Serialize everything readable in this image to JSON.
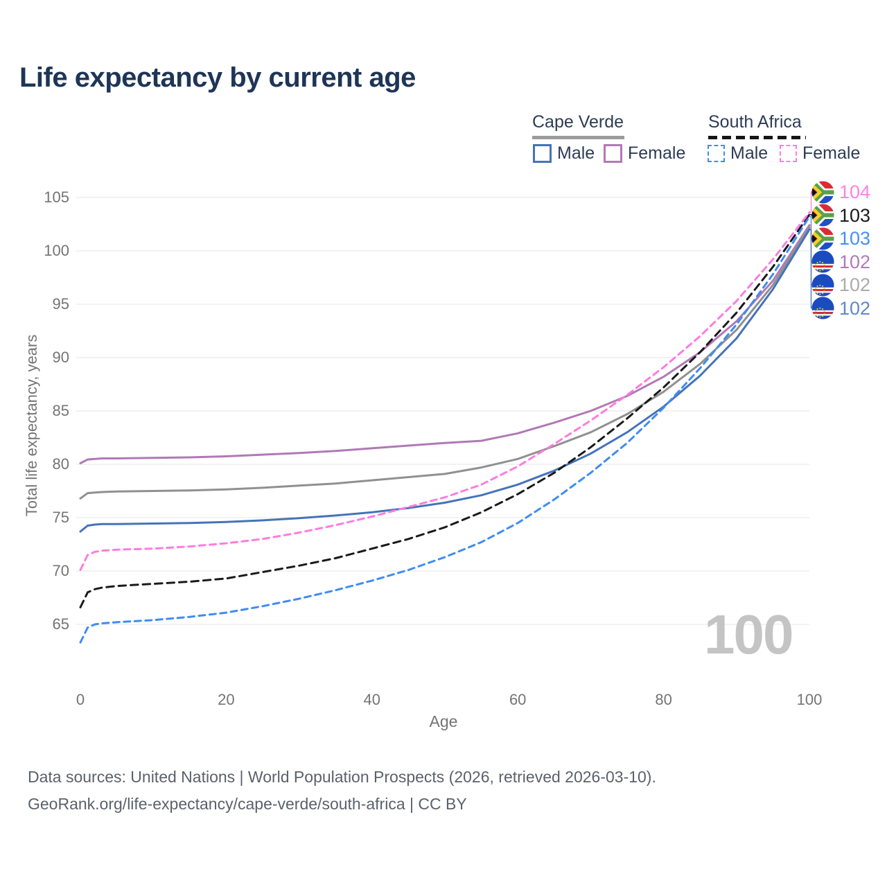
{
  "title": "Life expectancy by current age",
  "watermark_age": "100",
  "legend": {
    "groups": [
      {
        "name": "Cape Verde",
        "line_style": "solid",
        "line_color": "#9b9b9b",
        "items": [
          {
            "label": "Male",
            "color": "#4573ba",
            "style": "solid"
          },
          {
            "label": "Female",
            "color": "#b079b6",
            "style": "solid"
          }
        ]
      },
      {
        "name": "South Africa",
        "line_style": "dashed",
        "line_color": "#161616",
        "items": [
          {
            "label": "Male",
            "color": "#3f8cf3",
            "style": "dashed"
          },
          {
            "label": "Female",
            "color": "#ff7bdf",
            "style": "dashed"
          }
        ]
      }
    ]
  },
  "chart_data": {
    "type": "line",
    "title": "Life expectancy by current age",
    "xlabel": "Age",
    "ylabel": "Total life expectancy, years",
    "xlim": [
      0,
      100
    ],
    "ylim": [
      63,
      106
    ],
    "xticks": [
      0,
      20,
      40,
      60,
      80,
      100
    ],
    "yticks": [
      65,
      70,
      75,
      80,
      85,
      90,
      95,
      100,
      105
    ],
    "grid": "horizontal",
    "legend_position": "top-right",
    "x": [
      0,
      1,
      2,
      3,
      5,
      10,
      15,
      20,
      25,
      30,
      35,
      40,
      45,
      50,
      55,
      60,
      65,
      70,
      75,
      80,
      85,
      90,
      95,
      100
    ],
    "series": [
      {
        "name": "Cape Verde Female",
        "country": "cape-verde",
        "sex": "female",
        "color": "#b079b6",
        "dashed": false,
        "end_label": "102",
        "end_label_color": "#b27ab8",
        "values": [
          80.1,
          80.45,
          80.5,
          80.55,
          80.55,
          80.6,
          80.65,
          80.75,
          80.9,
          81.05,
          81.25,
          81.5,
          81.75,
          82.0,
          82.2,
          82.9,
          83.9,
          85.0,
          86.4,
          88.2,
          90.5,
          93.4,
          97.2,
          102.4
        ]
      },
      {
        "name": "Cape Verde Both sexes",
        "country": "cape-verde",
        "sex": "both",
        "color": "#909090",
        "dashed": false,
        "end_label": "102",
        "end_label_color": "#ababab",
        "values": [
          76.8,
          77.3,
          77.35,
          77.4,
          77.45,
          77.5,
          77.55,
          77.65,
          77.8,
          78.0,
          78.2,
          78.5,
          78.8,
          79.1,
          79.7,
          80.5,
          81.7,
          83.0,
          84.7,
          86.8,
          89.4,
          92.6,
          96.8,
          102.2
        ]
      },
      {
        "name": "Cape Verde Male",
        "country": "cape-verde",
        "sex": "male",
        "color": "#4573ba",
        "dashed": false,
        "end_label": "102",
        "end_label_color": "#6287c9",
        "values": [
          73.7,
          74.25,
          74.35,
          74.4,
          74.4,
          74.45,
          74.5,
          74.6,
          74.75,
          74.95,
          75.2,
          75.5,
          75.9,
          76.4,
          77.1,
          78.1,
          79.4,
          81.0,
          83.0,
          85.4,
          88.3,
          91.8,
          96.4,
          102.0
        ]
      },
      {
        "name": "South Africa Both sexes",
        "country": "south-africa",
        "sex": "both",
        "color": "#1a1a1a",
        "dashed": true,
        "end_label": "103",
        "end_label_color": "#1c1c1c",
        "values": [
          66.6,
          68.0,
          68.3,
          68.45,
          68.6,
          68.8,
          69.0,
          69.3,
          69.9,
          70.5,
          71.2,
          72.1,
          73.0,
          74.1,
          75.5,
          77.2,
          79.2,
          81.6,
          84.3,
          87.2,
          90.5,
          94.2,
          98.5,
          103.4
        ]
      },
      {
        "name": "South Africa Male",
        "country": "south-africa",
        "sex": "male",
        "color": "#3f8cf3",
        "dashed": true,
        "end_label": "103",
        "end_label_color": "#488df6",
        "values": [
          63.3,
          64.7,
          65.0,
          65.1,
          65.2,
          65.4,
          65.7,
          66.1,
          66.7,
          67.4,
          68.2,
          69.1,
          70.1,
          71.3,
          72.7,
          74.5,
          76.7,
          79.2,
          82.0,
          85.3,
          89.0,
          93.1,
          97.8,
          103.2
        ]
      },
      {
        "name": "South Africa Female",
        "country": "south-africa",
        "sex": "female",
        "color": "#ff7bdf",
        "dashed": true,
        "end_label": "104",
        "end_label_color": "#ff82e2",
        "values": [
          70.1,
          71.5,
          71.8,
          71.9,
          72.0,
          72.1,
          72.3,
          72.6,
          73.0,
          73.6,
          74.3,
          75.1,
          76.0,
          76.9,
          78.1,
          79.8,
          81.9,
          84.1,
          86.5,
          89.1,
          92.0,
          95.3,
          99.2,
          103.6
        ]
      }
    ],
    "end_label_order": [
      "South Africa Female",
      "South Africa Both sexes",
      "South Africa Male",
      "Cape Verde Female",
      "Cape Verde Both sexes",
      "Cape Verde Male"
    ]
  },
  "footer": {
    "line1": "Data sources: United Nations | World Population Prospects (2026, retrieved 2026-03-10).",
    "line2": "GeoRank.org/life-expectancy/cape-verde/south-africa | CC BY"
  }
}
